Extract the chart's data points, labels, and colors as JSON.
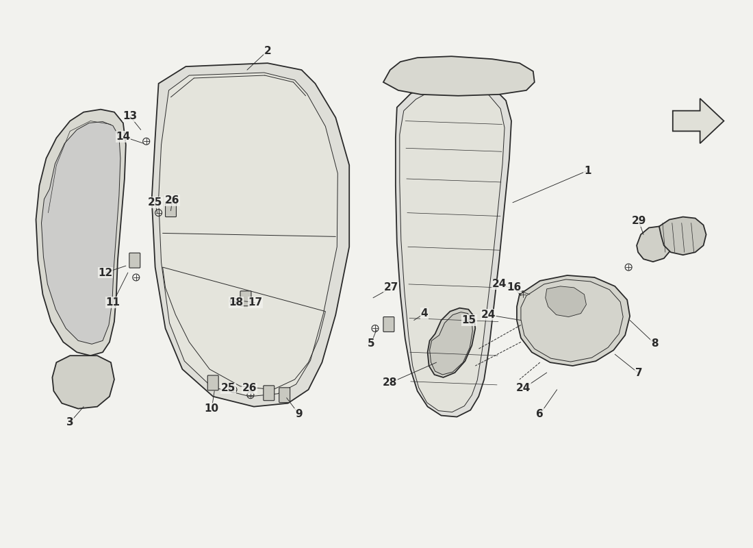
{
  "bg_color": "#f2f2ee",
  "line_color": "#2a2a2a",
  "figsize": [
    11.0,
    8.0
  ],
  "dpi": 100
}
